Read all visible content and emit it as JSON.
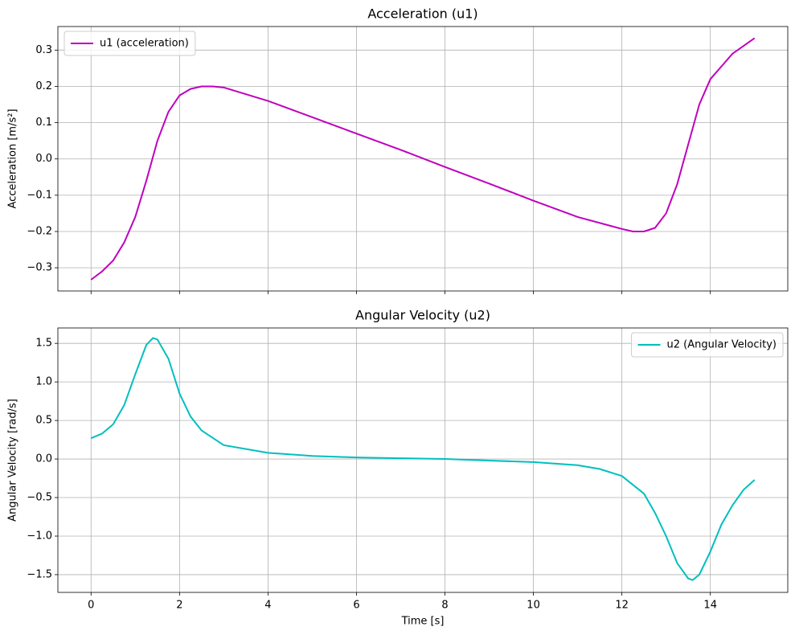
{
  "chart_data": [
    {
      "type": "line",
      "title": "Acceleration (u1)",
      "ylabel": "Acceleration [m/s²]",
      "x": [
        0,
        0.25,
        0.5,
        0.75,
        1.0,
        1.25,
        1.5,
        1.75,
        2.0,
        2.25,
        2.5,
        2.75,
        3,
        4,
        5,
        6,
        7,
        8,
        9,
        10,
        11,
        12,
        12.25,
        12.5,
        12.75,
        13,
        13.25,
        13.5,
        13.75,
        14,
        14.5,
        15
      ],
      "series": [
        {
          "name": "u1 (acceleration)",
          "color": "#bf00bf",
          "values": [
            -0.333,
            -0.31,
            -0.28,
            -0.23,
            -0.16,
            -0.06,
            0.05,
            0.13,
            0.175,
            0.193,
            0.2,
            0.2,
            0.197,
            0.16,
            0.115,
            0.07,
            0.025,
            -0.022,
            -0.068,
            -0.115,
            -0.16,
            -0.193,
            -0.2,
            -0.2,
            -0.19,
            -0.15,
            -0.07,
            0.04,
            0.15,
            0.22,
            0.29,
            0.333
          ]
        }
      ],
      "xlim": [
        -0.75,
        15.75
      ],
      "xticks": [
        0,
        2,
        4,
        6,
        8,
        10,
        12,
        14
      ],
      "show_xtick_labels": false,
      "ylim": [
        -0.364,
        0.365
      ],
      "yticks": [
        {
          "value": -0.3,
          "label": "−0.3"
        },
        {
          "value": -0.2,
          "label": "−0.2"
        },
        {
          "value": -0.1,
          "label": "−0.1"
        },
        {
          "value": 0,
          "label": "0.0"
        },
        0.1,
        0.2,
        0.3
      ],
      "grid": true,
      "legend": "upper-left"
    },
    {
      "type": "line",
      "title": "Angular Velocity (u2)",
      "ylabel": "Angular Velocity [rad/s]",
      "xlabel": "Time [s]",
      "x": [
        0,
        0.25,
        0.5,
        0.75,
        1.0,
        1.25,
        1.4,
        1.5,
        1.75,
        2.0,
        2.25,
        2.5,
        3,
        4,
        5,
        6,
        7,
        8,
        9,
        10,
        11,
        11.5,
        12,
        12.5,
        12.75,
        13,
        13.25,
        13.5,
        13.6,
        13.75,
        14,
        14.25,
        14.5,
        14.75,
        15
      ],
      "series": [
        {
          "name": "u2 (Angular Velocity)",
          "color": "#00bfbf",
          "values": [
            0.27,
            0.33,
            0.45,
            0.7,
            1.1,
            1.48,
            1.57,
            1.55,
            1.3,
            0.85,
            0.55,
            0.37,
            0.18,
            0.08,
            0.04,
            0.02,
            0.01,
            0,
            -0.02,
            -0.04,
            -0.08,
            -0.13,
            -0.22,
            -0.45,
            -0.7,
            -1.0,
            -1.35,
            -1.55,
            -1.57,
            -1.5,
            -1.2,
            -0.85,
            -0.6,
            -0.4,
            -0.27
          ]
        }
      ],
      "xlim": [
        -0.75,
        15.75
      ],
      "xticks": [
        0,
        2,
        4,
        6,
        8,
        10,
        12,
        14
      ],
      "show_xtick_labels": true,
      "ylim": [
        -1.73,
        1.7
      ],
      "yticks": [
        {
          "value": -1.5,
          "label": "−1.5"
        },
        {
          "value": -1.0,
          "label": "−1.0"
        },
        {
          "value": -0.5,
          "label": "−0.5"
        },
        {
          "value": 0,
          "label": "0.0"
        },
        0.5,
        {
          "value": 1.0,
          "label": "1.0"
        },
        1.5
      ],
      "grid": true,
      "legend": "upper-right"
    }
  ]
}
